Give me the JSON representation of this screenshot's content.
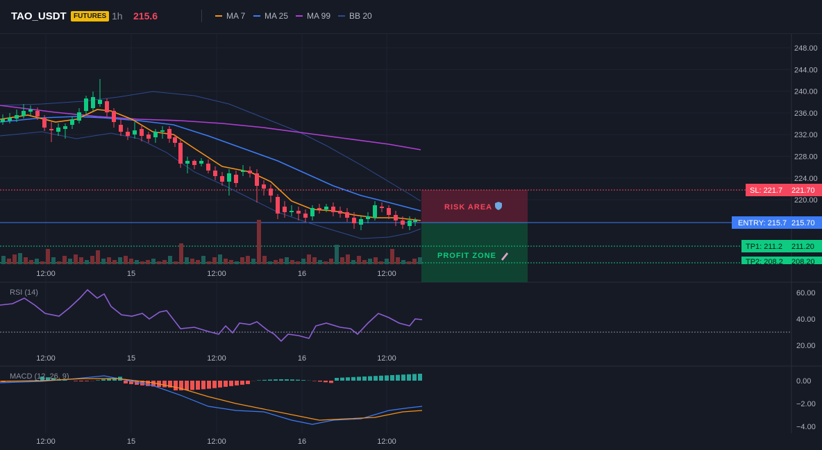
{
  "header": {
    "symbol": "TAO_USDT",
    "badge": "FUTURES",
    "timeframe": "1h",
    "price": "215.6",
    "indicators": [
      {
        "label": "MA 7",
        "color": "#f7931a"
      },
      {
        "label": "MA 25",
        "color": "#3d7cf5"
      },
      {
        "label": "MA 99",
        "color": "#b23fd6"
      },
      {
        "label": "BB 20",
        "color": "#2f4a8f"
      }
    ]
  },
  "main_axis": [
    "248.00",
    "244.00",
    "240.00",
    "236.00",
    "232.00",
    "228.00",
    "224.00",
    "220.00"
  ],
  "time_labels": [
    "12:00",
    "15",
    "12:00",
    "16",
    "12:00"
  ],
  "levels": {
    "sl": {
      "tag": "SL: 221.7",
      "value": "221.70",
      "color": "#f6465d"
    },
    "entry": {
      "tag": "ENTRY: 215.7",
      "value": "215.70",
      "color": "#3d7cf5"
    },
    "tp1": {
      "tag": "TP1: 211.2",
      "value": "211.20",
      "color": "#0ecb81"
    },
    "tp2": {
      "tag": "TP2: 208.2",
      "value": "208.20",
      "color": "#0ecb81"
    }
  },
  "zones": {
    "risk": "RISK AREA",
    "profit": "PROFIT ZONE",
    "risk_icon": "shield-icon",
    "profit_icon": "rocket-icon"
  },
  "rsi": {
    "title": "RSI (14)",
    "axis": [
      "60.00",
      "40.00",
      "20.00"
    ]
  },
  "macd": {
    "title": "MACD (12, 26, 9)",
    "axis": [
      "0.00",
      "−2.00",
      "−4.00"
    ]
  },
  "colors": {
    "up": "#26a69a",
    "down": "#ef5350",
    "candle_up": "#0ecb81",
    "candle_down": "#f6465d"
  }
}
